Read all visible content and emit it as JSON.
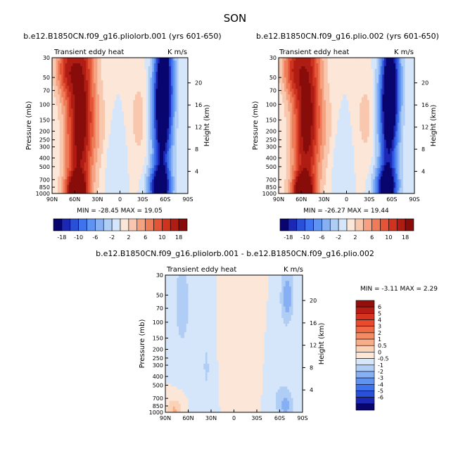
{
  "season": "SON",
  "panels": [
    {
      "id": "p1",
      "title": "b.e12.B1850CN.f09_g16.pliolorb.001 (yrs 601-650)",
      "var_label": "Transient eddy heat",
      "units_label": "K m/s",
      "stats": "MIN = -28.45   MAX =  19.05",
      "amp": 28,
      "pattern": "full"
    },
    {
      "id": "p2",
      "title": "b.e12.B1850CN.f09_g16.plio.002 (yrs 601-650)",
      "var_label": "Transient eddy heat",
      "units_label": "K m/s",
      "stats": "MIN = -26.27   MAX =  19.44",
      "amp": 27,
      "pattern": "full"
    },
    {
      "id": "p3",
      "title": "b.e12.B1850CN.f09_g16.pliolorb.001 - b.e12.B1850CN.f09_g16.plio.002",
      "var_label": "Transient eddy heat",
      "units_label": "K m/s",
      "stats": "MIN =   -3.11   MAX =   2.29",
      "amp": 3,
      "pattern": "diff"
    }
  ],
  "chart_data": {
    "type": "heatmap",
    "xlabel": "",
    "ylabel_left": "Pressure (mb)",
    "ylabel_right": "Height (km)",
    "x_ticks": [
      "90N",
      "60N",
      "30N",
      "0",
      "30S",
      "60S",
      "90S"
    ],
    "x_range": [
      90,
      -90
    ],
    "pressure_ticks": [
      30,
      50,
      70,
      100,
      150,
      200,
      250,
      300,
      400,
      500,
      700,
      850,
      1000
    ],
    "pressure_range": [
      1000,
      30
    ],
    "height_ticks": [
      4,
      8,
      12,
      16,
      20
    ],
    "full_colorbar": {
      "orientation": "horizontal",
      "labels": [
        "-18",
        "-10",
        "-6",
        "-2",
        "2",
        "6",
        "10",
        "18"
      ],
      "colors": [
        "#08066e",
        "#1c28b4",
        "#2a50d8",
        "#3f73ee",
        "#5f93f2",
        "#86b0f3",
        "#b0cdf6",
        "#d6e6fa",
        "#fbe6d8",
        "#f8c7ad",
        "#f4a281",
        "#ee7c59",
        "#e45538",
        "#cc3420",
        "#ae1c13",
        "#880d0a"
      ]
    },
    "diff_colorbar": {
      "orientation": "vertical",
      "labels": [
        "6",
        "5",
        "4",
        "3",
        "2",
        "1",
        "0.5",
        "0",
        "-0.5",
        "-1",
        "-2",
        "-3",
        "-4",
        "-5",
        "-6"
      ],
      "colors": [
        "#920f0c",
        "#b81d15",
        "#d63320",
        "#e84c2c",
        "#ef6a45",
        "#f38b63",
        "#f6ad88",
        "#fad2b7",
        "#fbe6d8",
        "#d6e6fa",
        "#b0cdf6",
        "#86b0f3",
        "#5f93f2",
        "#3f73ee",
        "#2a50d8",
        "#1c28b4",
        "#08066e"
      ]
    },
    "series": [
      {
        "name": "pliolorb.001",
        "min": -28.45,
        "max": 19.05
      },
      {
        "name": "plio.002",
        "min": -26.27,
        "max": 19.44
      },
      {
        "name": "difference",
        "min": -3.11,
        "max": 2.29
      }
    ]
  }
}
